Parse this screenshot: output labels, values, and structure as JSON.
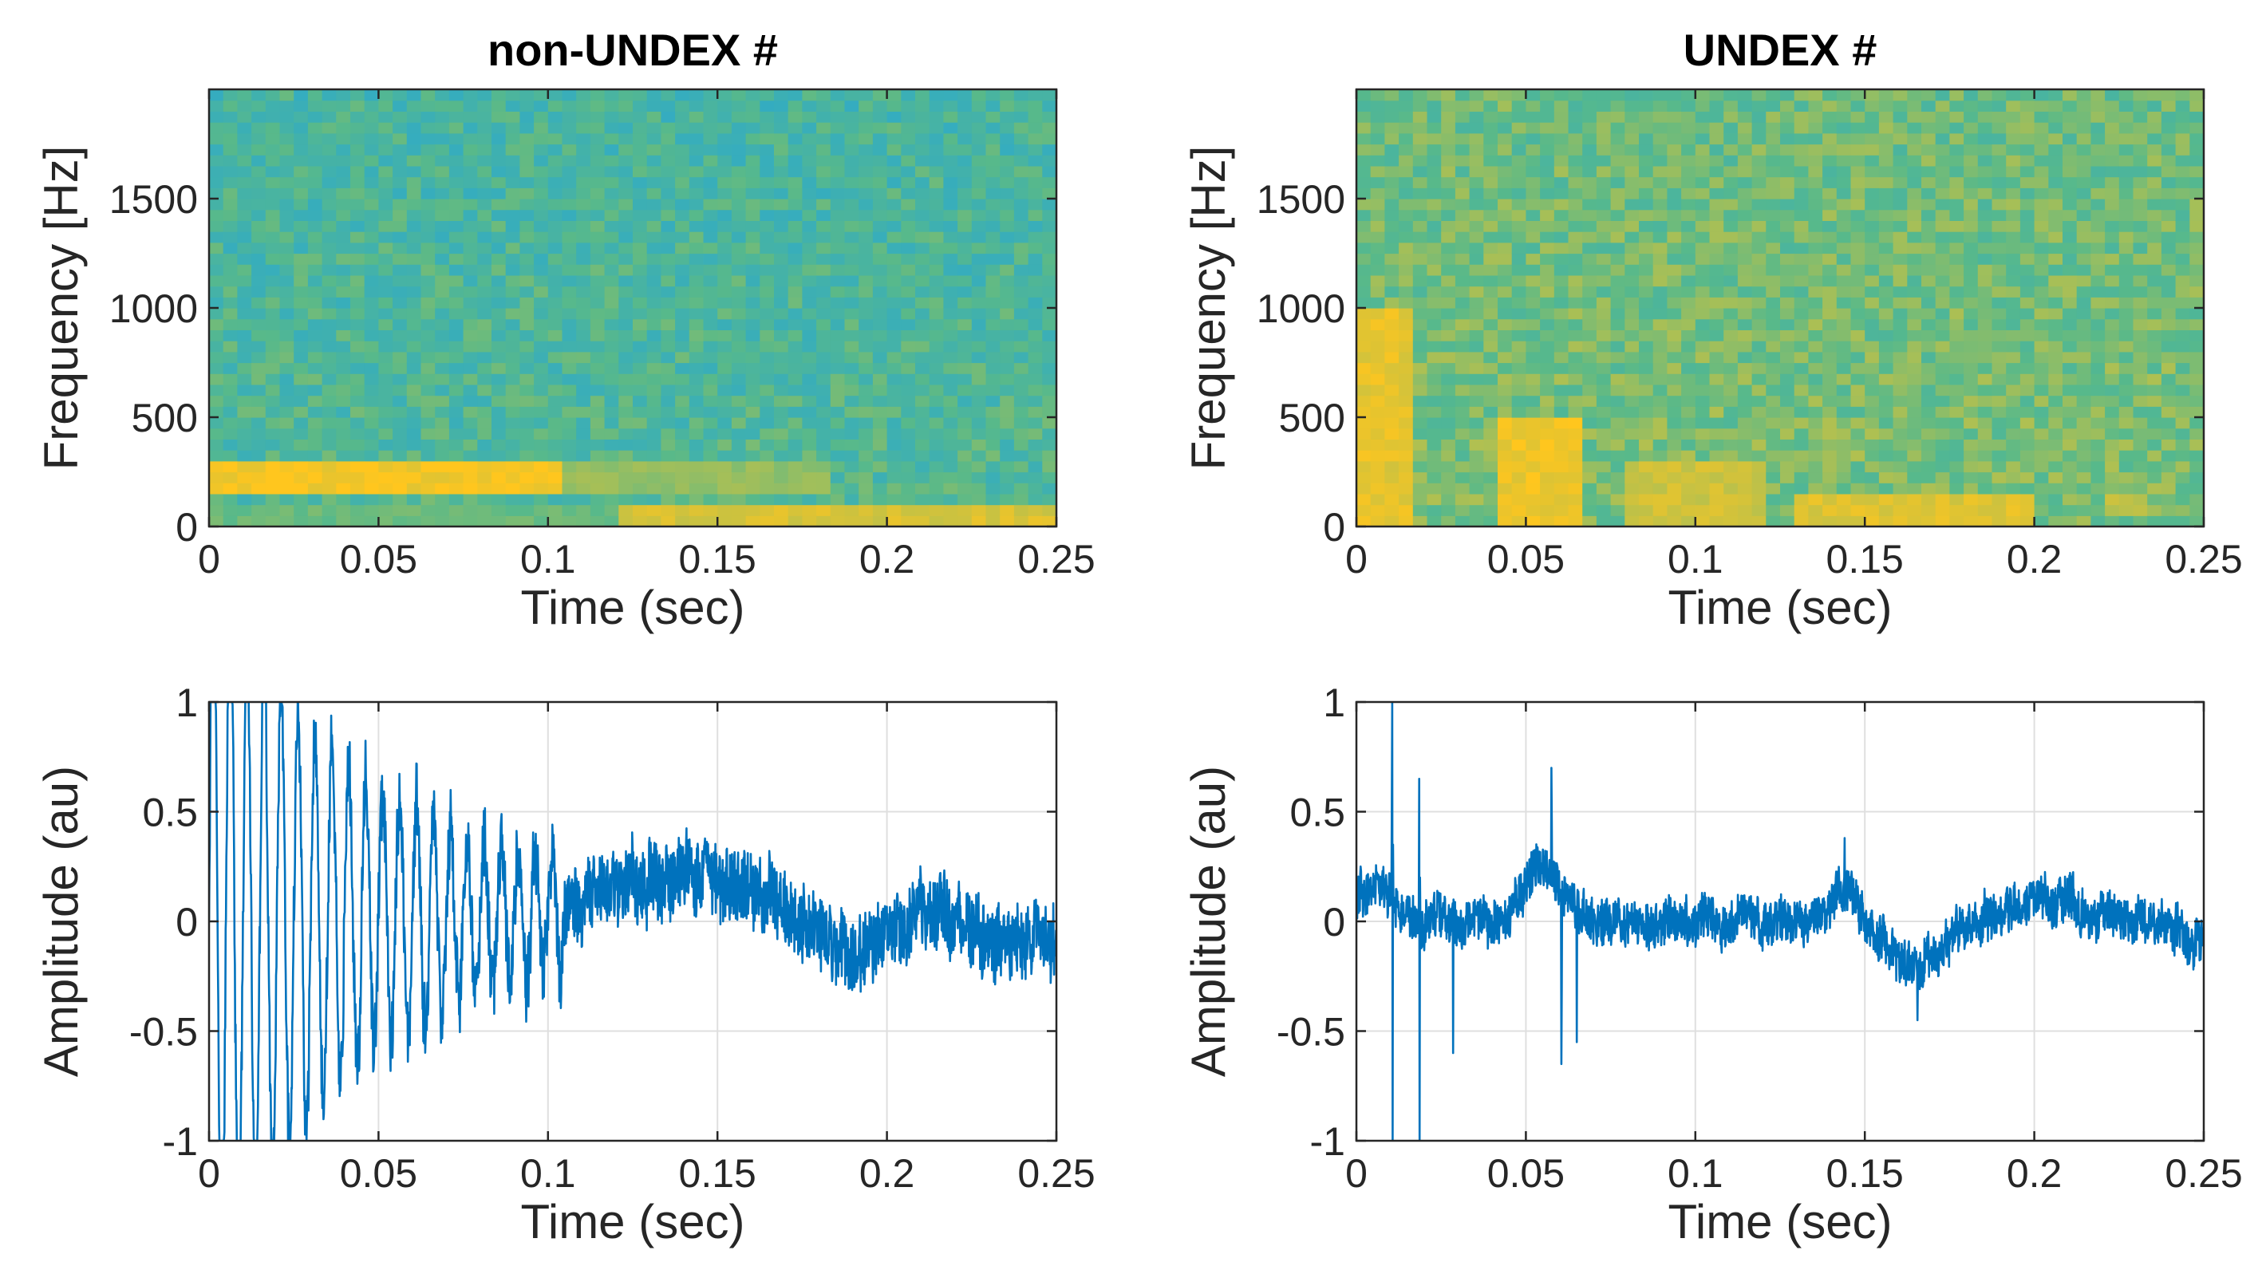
{
  "colors": {
    "line": "#0072bd",
    "grid": "#dfdfdf",
    "axis": "#262626",
    "spec_low": "#1aa3e8",
    "spec_mid": "#58b98a",
    "spec_high": "#ffc61e"
  },
  "chart_data": [
    {
      "id": "spec-nonundex",
      "type": "heatmap",
      "title": "non-UNDEX #",
      "xlabel": "Time (sec)",
      "ylabel": "Frequency [Hz]",
      "xlim": [
        0,
        0.25
      ],
      "ylim": [
        0,
        2000
      ],
      "xticks": [
        0,
        0.05,
        0.1,
        0.15,
        0.2,
        0.25
      ],
      "xtick_labels": [
        "0",
        "0.05",
        "0.1",
        "0.15",
        "0.2",
        "0.25"
      ],
      "yticks": [
        0,
        500,
        1000,
        1500
      ],
      "ytick_labels": [
        "0",
        "500",
        "1000",
        "1500"
      ],
      "time_bins": 60,
      "freq_bins": 40,
      "base_intensity": 0.38,
      "features": [
        {
          "t": [
            0.0,
            0.105
          ],
          "f": [
            140,
            290
          ],
          "intensity": 0.97
        },
        {
          "t": [
            0.105,
            0.185
          ],
          "f": [
            140,
            290
          ],
          "intensity": 0.68
        },
        {
          "t": [
            0.12,
            0.25
          ],
          "f": [
            0,
            110
          ],
          "intensity": 0.88
        },
        {
          "t": [
            0.0,
            0.12
          ],
          "f": [
            0,
            110
          ],
          "intensity": 0.55
        }
      ]
    },
    {
      "id": "spec-undex",
      "type": "heatmap",
      "title": "UNDEX #",
      "xlabel": "Time (sec)",
      "ylabel": "Frequency [Hz]",
      "xlim": [
        0,
        0.25
      ],
      "ylim": [
        0,
        2000
      ],
      "xticks": [
        0,
        0.05,
        0.1,
        0.15,
        0.2,
        0.25
      ],
      "xtick_labels": [
        "0",
        "0.05",
        "0.1",
        "0.15",
        "0.2",
        "0.25"
      ],
      "yticks": [
        0,
        500,
        1000,
        1500
      ],
      "ytick_labels": [
        "0",
        "500",
        "1000",
        "1500"
      ],
      "time_bins": 60,
      "freq_bins": 40,
      "base_intensity": 0.55,
      "features": [
        {
          "t": [
            0.0,
            0.015
          ],
          "f": [
            0,
            1000
          ],
          "intensity": 0.92
        },
        {
          "t": [
            0.04,
            0.065
          ],
          "f": [
            0,
            500
          ],
          "intensity": 0.95
        },
        {
          "t": [
            0.08,
            0.12
          ],
          "f": [
            0,
            320
          ],
          "intensity": 0.85
        },
        {
          "t": [
            0.13,
            0.2
          ],
          "f": [
            0,
            130
          ],
          "intensity": 0.9
        },
        {
          "t": [
            0.22,
            0.235
          ],
          "f": [
            60,
            140
          ],
          "intensity": 0.8
        }
      ]
    },
    {
      "id": "wave-nonundex",
      "type": "line",
      "title": "",
      "xlabel": "Time (sec)",
      "ylabel": "Amplitude (au)",
      "xlim": [
        0,
        0.25
      ],
      "ylim": [
        -1,
        1
      ],
      "xticks": [
        0,
        0.05,
        0.1,
        0.15,
        0.2,
        0.25
      ],
      "xtick_labels": [
        "0",
        "0.05",
        "0.1",
        "0.15",
        "0.2",
        "0.25"
      ],
      "yticks": [
        -1,
        -0.5,
        0,
        0.5,
        1
      ],
      "ytick_labels": [
        "-1",
        "-0.5",
        "0",
        "0.5",
        "1"
      ],
      "grid": true,
      "samples": 2200,
      "components": {
        "tone_freq_hz": 200,
        "tone_amp_start": 1.6,
        "tone_decay_s": 0.04,
        "tone_end_s": 0.105,
        "noise_amp": 0.16,
        "swells": [
          {
            "t": 0.14,
            "width": 0.022,
            "amp": 0.22
          },
          {
            "t": 0.215,
            "width": 0.012,
            "amp": 0.1
          }
        ],
        "dips": [
          {
            "t": 0.19,
            "width": 0.012,
            "amp": -0.18
          },
          {
            "t": 0.235,
            "width": 0.012,
            "amp": -0.15
          }
        ]
      }
    },
    {
      "id": "wave-undex",
      "type": "line",
      "title": "",
      "xlabel": "Time (sec)",
      "ylabel": "Amplitude (au)",
      "xlim": [
        0,
        0.25
      ],
      "ylim": [
        -1,
        1
      ],
      "xticks": [
        0,
        0.05,
        0.1,
        0.15,
        0.2,
        0.25
      ],
      "xtick_labels": [
        "0",
        "0.05",
        "0.1",
        "0.15",
        "0.2",
        "0.25"
      ],
      "yticks": [
        -1,
        -0.5,
        0,
        0.5,
        1
      ],
      "ytick_labels": [
        "-1",
        "-0.5",
        "0",
        "0.5",
        "1"
      ],
      "grid": true,
      "samples": 2200,
      "components": {
        "noise_amp": 0.1,
        "spikes": [
          {
            "t": 0.0105,
            "values": [
              0.55,
              1.0,
              -1.0,
              0.35
            ]
          },
          {
            "t": 0.0185,
            "values": [
              0.65,
              -1.0,
              0.2
            ]
          },
          {
            "t": 0.0285,
            "values": [
              -0.6,
              0.1
            ]
          },
          {
            "t": 0.0575,
            "values": [
              0.7,
              0.45
            ]
          },
          {
            "t": 0.0605,
            "values": [
              -0.65,
              -0.3
            ]
          },
          {
            "t": 0.065,
            "values": [
              -0.55
            ]
          },
          {
            "t": 0.144,
            "values": [
              0.38
            ]
          },
          {
            "t": 0.1655,
            "values": [
              -0.45
            ]
          }
        ],
        "swells": [
          {
            "t": 0.005,
            "width": 0.006,
            "amp": 0.15
          },
          {
            "t": 0.055,
            "width": 0.005,
            "amp": 0.25
          },
          {
            "t": 0.144,
            "width": 0.004,
            "amp": 0.15
          },
          {
            "t": 0.205,
            "width": 0.012,
            "amp": 0.09
          }
        ],
        "dips": [
          {
            "t": 0.165,
            "width": 0.008,
            "amp": -0.2
          },
          {
            "t": 0.248,
            "width": 0.006,
            "amp": -0.1
          }
        ]
      }
    }
  ]
}
